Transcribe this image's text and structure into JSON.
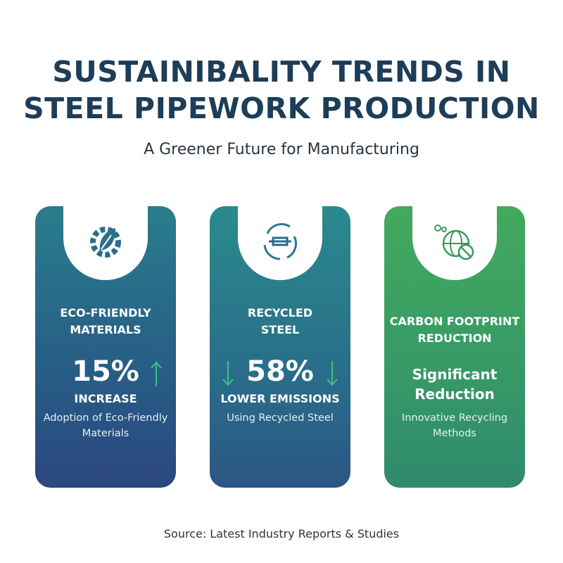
{
  "header": {
    "title_lines": [
      "SUSTAINIBALITY TRENDS IN",
      "STEEL PIPEWORK PRODUCTION"
    ],
    "subtitle": "A Greener Future for Manufacturing"
  },
  "cards": [
    {
      "heading": "ECO-FRIENDLY MATERIALS",
      "stat": "15%",
      "stat_label": "INCREASE",
      "description": "Adoption of Eco-Friendly Materials"
    },
    {
      "heading": "RECYCLED STEEL",
      "stat": "58%",
      "stat_label": "LOWER EMISSIONS",
      "description": "Using Recycled Steel"
    },
    {
      "heading": "CARBON FOOTPRINT REDUCTION",
      "stat": "Significant Reduction",
      "description": "Innovative Recycling Methods"
    }
  ],
  "footer": {
    "source": "Source: Latest Industry Reports & Studies"
  }
}
